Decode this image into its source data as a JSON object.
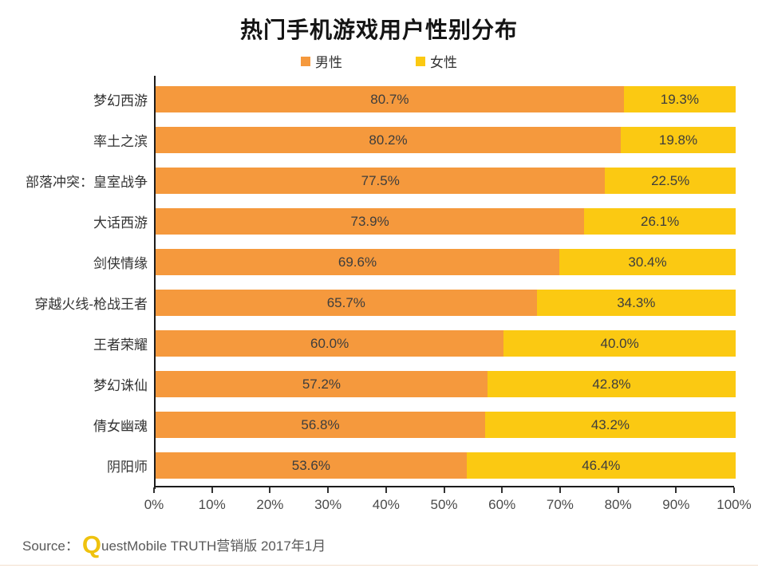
{
  "title": "热门手机游戏用户性别分布",
  "colors": {
    "male": "#F5993D",
    "female": "#FBC912",
    "axis": "#1c1c1c",
    "bar_label": "#3d3d3d",
    "logo_yellow": "#EFC20E",
    "bottom_rule": "#F2DFCC"
  },
  "chart_data": {
    "type": "bar",
    "orientation": "horizontal",
    "stacked": true,
    "title": "热门手机游戏用户性别分布",
    "legend_position": "top",
    "categories": [
      "梦幻西游",
      "率土之滨",
      "部落冲突：皇室战争",
      "大话西游",
      "剑侠情缘",
      "穿越火线-枪战王者",
      "王者荣耀",
      "梦幻诛仙",
      "倩女幽魂",
      "阴阳师"
    ],
    "series": [
      {
        "name": "男性",
        "color": "#F5993D",
        "values": [
          80.7,
          80.2,
          77.5,
          73.9,
          69.6,
          65.7,
          60.0,
          57.2,
          56.8,
          53.6
        ]
      },
      {
        "name": "女性",
        "color": "#FBC912",
        "values": [
          19.3,
          19.8,
          22.5,
          26.1,
          30.4,
          34.3,
          40.0,
          42.8,
          43.2,
          46.4
        ]
      }
    ],
    "value_suffix": "%",
    "value_decimals": 1,
    "xlim": [
      0,
      100
    ],
    "x_ticks": [
      "0%",
      "10%",
      "20%",
      "30%",
      "40%",
      "50%",
      "60%",
      "70%",
      "80%",
      "90%",
      "100%"
    ],
    "grid": false
  },
  "source": {
    "prefix": "Source：",
    "logo_letter": "Q",
    "text": "uestMobile TRUTH营销版 2017年1月"
  }
}
